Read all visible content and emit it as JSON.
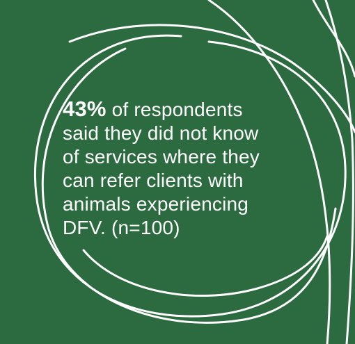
{
  "background_color": "#2c6b3f",
  "stroke_color": "#ffffff",
  "stat": {
    "number": "43%",
    "lines": [
      " of respondents",
      "said they did not know",
      "of services where they",
      "can refer clients with",
      "animals experiencing",
      "DFV. (n=100)"
    ]
  }
}
